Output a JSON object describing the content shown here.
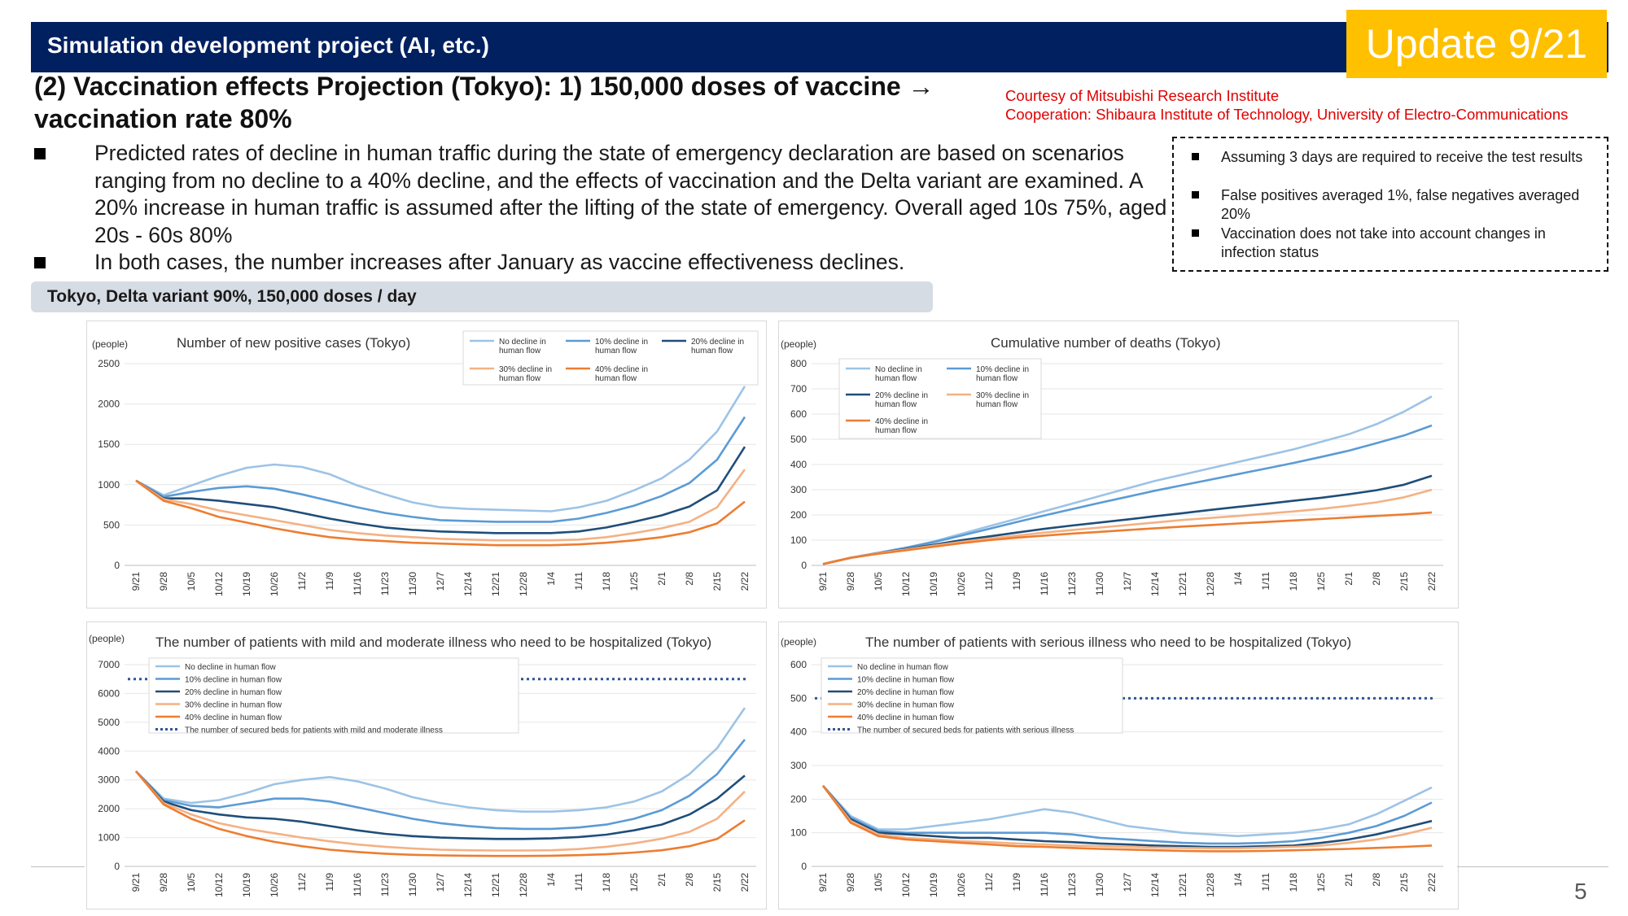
{
  "header": {
    "title": "Simulation development project (AI, etc.)",
    "badge": "Update 9/21"
  },
  "main_title": "(2) Vaccination effects Projection (Tokyo): 1) 150,000 doses of vaccine → vaccination rate 80%",
  "credits": {
    "line1": "Courtesy of Mitsubishi Research Institute",
    "line2": "Cooperation: Shibaura Institute of Technology, University of Electro-Communications"
  },
  "bullets": [
    "Predicted rates of decline in human traffic during the state of emergency declaration are based on scenarios ranging from no decline to a 40% decline, and the effects of vaccination and the Delta variant are examined. A 20% increase in human traffic is assumed after the lifting of the state of emergency. Overall aged 10s 75%, aged 20s - 60s 80%",
    "In both cases, the number increases after January as vaccine effectiveness declines."
  ],
  "notes": [
    "Assuming 3 days are required to receive the test results",
    "False positives averaged 1%, false negatives averaged 20%",
    "Vaccination does not take into account changes in infection status"
  ],
  "scenario_label": "Tokyo, Delta variant 90%, 150,000 doses / day",
  "page_number": "5",
  "colors": {
    "no_decline": "#9dc3e6",
    "decline_10": "#5b9bd5",
    "decline_20": "#1f4e79",
    "decline_30": "#f4b183",
    "decline_40": "#ed7d31",
    "secured_beds": "#2f5597",
    "header_bg": "#002060",
    "badge_bg": "#ffc000",
    "credit_red": "#e00000"
  },
  "chart_data": [
    {
      "type": "line",
      "title": "Number of new positive cases (Tokyo)",
      "ylabel": "(people)",
      "ylim": [
        0,
        2500
      ],
      "yticks": [
        "0",
        "500",
        "1000",
        "1500",
        "2000",
        "2500"
      ],
      "x_ticks": [
        "9/21",
        "9/28",
        "10/5",
        "10/12",
        "10/19",
        "10/26",
        "11/2",
        "11/9",
        "11/16",
        "11/23",
        "11/30",
        "12/7",
        "12/14",
        "12/21",
        "12/28",
        "1/4",
        "1/11",
        "1/18",
        "1/25",
        "2/1",
        "2/8",
        "2/15",
        "2/22"
      ],
      "legend_position": "top-right",
      "legend_cols": 3,
      "legend_labels": [
        [
          "No decline in",
          "human flow"
        ],
        [
          "10% decline in",
          "human flow"
        ],
        [
          "20% decline in",
          "human flow"
        ],
        [
          "30% decline in",
          "human flow"
        ],
        [
          "40% decline in",
          "human flow"
        ]
      ],
      "series": [
        {
          "name": "No decline in human flow",
          "values": [
            1050,
            870,
            990,
            1110,
            1210,
            1250,
            1220,
            1130,
            990,
            880,
            780,
            720,
            700,
            690,
            680,
            670,
            720,
            800,
            930,
            1080,
            1310,
            1660,
            2220
          ]
        },
        {
          "name": "10% decline in human flow",
          "values": [
            1050,
            850,
            910,
            960,
            980,
            950,
            880,
            800,
            720,
            650,
            600,
            560,
            550,
            540,
            540,
            540,
            580,
            650,
            740,
            860,
            1020,
            1310,
            1840
          ]
        },
        {
          "name": "20% decline in human flow",
          "values": [
            1050,
            830,
            830,
            800,
            760,
            720,
            650,
            580,
            520,
            470,
            440,
            420,
            410,
            400,
            400,
            400,
            420,
            470,
            540,
            620,
            730,
            930,
            1470
          ]
        },
        {
          "name": "30% decline in human flow",
          "values": [
            1050,
            820,
            760,
            680,
            620,
            560,
            500,
            440,
            400,
            370,
            350,
            330,
            320,
            310,
            310,
            310,
            320,
            350,
            400,
            460,
            540,
            720,
            1190
          ]
        },
        {
          "name": "40% decline in human flow",
          "values": [
            1050,
            800,
            710,
            600,
            530,
            460,
            400,
            350,
            320,
            300,
            280,
            270,
            260,
            250,
            250,
            250,
            260,
            280,
            310,
            350,
            410,
            520,
            790
          ]
        }
      ]
    },
    {
      "type": "line",
      "title": "Cumulative number of deaths (Tokyo)",
      "ylabel": "(people)",
      "ylim": [
        0,
        800
      ],
      "yticks": [
        "0",
        "100",
        "200",
        "300",
        "400",
        "500",
        "600",
        "700",
        "800"
      ],
      "x_ticks": [
        "9/21",
        "9/28",
        "10/5",
        "10/12",
        "10/19",
        "10/26",
        "11/2",
        "11/9",
        "11/16",
        "11/23",
        "11/30",
        "12/7",
        "12/14",
        "12/21",
        "12/28",
        "1/4",
        "1/11",
        "1/18",
        "1/25",
        "2/1",
        "2/8",
        "2/15",
        "2/22"
      ],
      "legend_position": "top-left",
      "legend_cols": 2,
      "legend_labels": [
        [
          "No decline in",
          "human flow"
        ],
        [
          "10% decline in",
          "human flow"
        ],
        [
          "20% decline in",
          "human flow"
        ],
        [
          "30% decline in",
          "human flow"
        ],
        [
          "40% decline in",
          "human flow"
        ]
      ],
      "series": [
        {
          "name": "No decline in human flow",
          "values": [
            5,
            30,
            50,
            70,
            95,
            125,
            155,
            185,
            215,
            245,
            275,
            305,
            335,
            360,
            385,
            410,
            435,
            460,
            490,
            520,
            560,
            610,
            670
          ]
        },
        {
          "name": "10% decline in human flow",
          "values": [
            5,
            30,
            50,
            70,
            92,
            118,
            145,
            172,
            198,
            223,
            248,
            272,
            296,
            318,
            340,
            362,
            384,
            406,
            430,
            455,
            485,
            515,
            555
          ]
        },
        {
          "name": "20% decline in human flow",
          "values": [
            5,
            30,
            48,
            65,
            82,
            100,
            115,
            130,
            145,
            158,
            170,
            182,
            195,
            207,
            220,
            232,
            244,
            256,
            268,
            282,
            298,
            320,
            355
          ]
        },
        {
          "name": "30% decline in human flow",
          "values": [
            5,
            30,
            48,
            63,
            78,
            93,
            106,
            118,
            130,
            140,
            150,
            160,
            170,
            180,
            188,
            196,
            205,
            214,
            224,
            236,
            250,
            270,
            300
          ]
        },
        {
          "name": "40% decline in human flow",
          "values": [
            5,
            30,
            46,
            60,
            74,
            88,
            100,
            110,
            118,
            126,
            133,
            140,
            147,
            154,
            160,
            166,
            172,
            178,
            184,
            190,
            196,
            202,
            210
          ]
        }
      ]
    },
    {
      "type": "line",
      "title": "The number of patients with mild and moderate illness who need to be hospitalized (Tokyo)",
      "ylabel": "(people)",
      "ylim": [
        0,
        7000
      ],
      "yticks": [
        "0",
        "1000",
        "2000",
        "3000",
        "4000",
        "5000",
        "6000",
        "7000"
      ],
      "x_ticks": [
        "9/21",
        "9/28",
        "10/5",
        "10/12",
        "10/19",
        "10/26",
        "11/2",
        "11/9",
        "11/16",
        "11/23",
        "11/30",
        "12/7",
        "12/14",
        "12/21",
        "12/28",
        "1/4",
        "1/11",
        "1/18",
        "1/25",
        "2/1",
        "2/8",
        "2/15",
        "2/22"
      ],
      "legend_position": "top-left",
      "legend_cols": 1,
      "legend_labels": [
        [
          "No decline in human flow"
        ],
        [
          "10% decline in human flow"
        ],
        [
          "20% decline in human flow"
        ],
        [
          "30% decline in human flow"
        ],
        [
          "40% decline in human flow"
        ],
        [
          "The number of secured beds for patients with mild and moderate illness"
        ]
      ],
      "secured_beds": 6500,
      "series": [
        {
          "name": "No decline in human flow",
          "values": [
            3300,
            2350,
            2200,
            2300,
            2550,
            2850,
            3000,
            3100,
            2950,
            2700,
            2400,
            2200,
            2050,
            1950,
            1900,
            1900,
            1950,
            2050,
            2250,
            2600,
            3200,
            4100,
            5500
          ]
        },
        {
          "name": "10% decline in human flow",
          "values": [
            3300,
            2300,
            2100,
            2050,
            2200,
            2350,
            2350,
            2250,
            2050,
            1850,
            1650,
            1500,
            1400,
            1330,
            1300,
            1300,
            1350,
            1450,
            1650,
            1950,
            2450,
            3200,
            4400
          ]
        },
        {
          "name": "20% decline in human flow",
          "values": [
            3300,
            2250,
            1950,
            1800,
            1700,
            1650,
            1550,
            1400,
            1250,
            1130,
            1050,
            1000,
            970,
            950,
            950,
            970,
            1020,
            1100,
            1250,
            1450,
            1800,
            2350,
            3150
          ]
        },
        {
          "name": "30% decline in human flow",
          "values": [
            3300,
            2200,
            1800,
            1500,
            1300,
            1150,
            1000,
            870,
            760,
            680,
            620,
            580,
            560,
            550,
            550,
            560,
            600,
            680,
            800,
            960,
            1200,
            1650,
            2600
          ]
        },
        {
          "name": "40% decline in human flow",
          "values": [
            3300,
            2150,
            1650,
            1300,
            1050,
            850,
            700,
            580,
            500,
            440,
            400,
            380,
            370,
            360,
            360,
            370,
            390,
            420,
            480,
            560,
            700,
            950,
            1600
          ]
        }
      ]
    },
    {
      "type": "line",
      "title": "The number of patients with serious illness who need to be hospitalized (Tokyo)",
      "ylabel": "(people)",
      "ylim": [
        0,
        600
      ],
      "yticks": [
        "0",
        "100",
        "200",
        "300",
        "400",
        "500",
        "600"
      ],
      "x_ticks": [
        "9/21",
        "9/28",
        "10/5",
        "10/12",
        "10/19",
        "10/26",
        "11/2",
        "11/9",
        "11/16",
        "11/23",
        "11/30",
        "12/7",
        "12/14",
        "12/21",
        "12/28",
        "1/4",
        "1/11",
        "1/18",
        "1/25",
        "2/1",
        "2/8",
        "2/15",
        "2/22"
      ],
      "legend_position": "top-left",
      "legend_cols": 1,
      "legend_labels": [
        [
          "No decline in human flow"
        ],
        [
          "10% decline in human flow"
        ],
        [
          "20% decline in human flow"
        ],
        [
          "30% decline in human flow"
        ],
        [
          "40% decline in human flow"
        ],
        [
          "The number of secured beds for patients with serious illness"
        ]
      ],
      "secured_beds": 500,
      "series": [
        {
          "name": "No decline in human flow",
          "values": [
            240,
            150,
            110,
            110,
            120,
            130,
            140,
            155,
            170,
            160,
            140,
            120,
            110,
            100,
            95,
            90,
            95,
            100,
            110,
            125,
            155,
            195,
            235
          ]
        },
        {
          "name": "10% decline in human flow",
          "values": [
            240,
            145,
            105,
            100,
            100,
            100,
            100,
            100,
            100,
            95,
            85,
            80,
            75,
            70,
            68,
            68,
            70,
            75,
            85,
            100,
            120,
            150,
            190
          ]
        },
        {
          "name": "20% decline in human flow",
          "values": [
            240,
            140,
            100,
            95,
            90,
            85,
            85,
            80,
            75,
            72,
            68,
            65,
            62,
            60,
            58,
            58,
            60,
            62,
            70,
            80,
            95,
            115,
            135
          ]
        },
        {
          "name": "30% decline in human flow",
          "values": [
            240,
            135,
            95,
            85,
            80,
            75,
            72,
            68,
            65,
            62,
            60,
            58,
            56,
            55,
            54,
            54,
            56,
            58,
            62,
            70,
            80,
            95,
            115
          ]
        },
        {
          "name": "40% decline in human flow",
          "values": [
            240,
            130,
            90,
            80,
            75,
            70,
            65,
            60,
            58,
            55,
            52,
            50,
            48,
            46,
            45,
            45,
            46,
            48,
            50,
            52,
            55,
            58,
            62
          ]
        }
      ]
    }
  ]
}
